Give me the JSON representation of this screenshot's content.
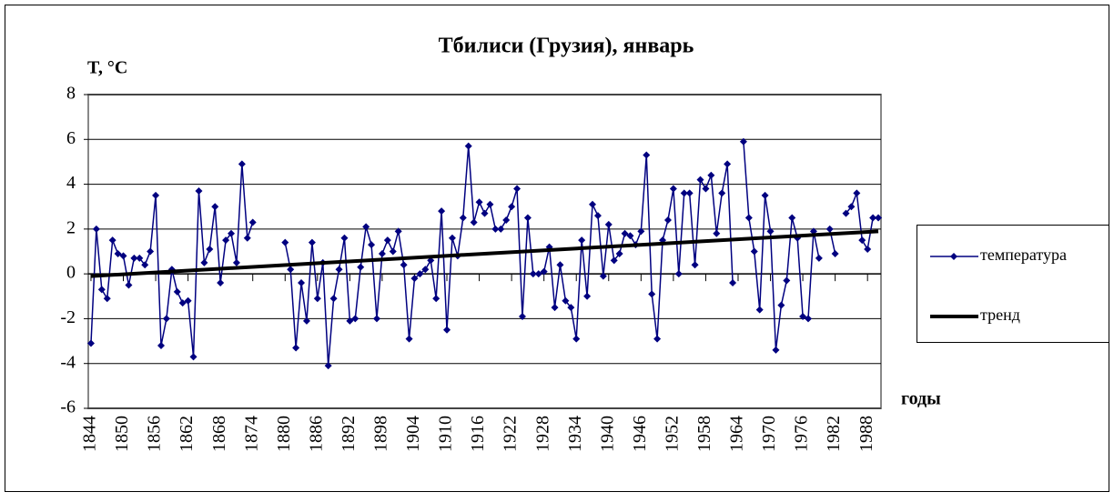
{
  "chart_data": {
    "type": "line",
    "title": "Тбилиси (Грузия), январь",
    "y_label": "T, °C",
    "x_label": "годы",
    "xlim": [
      1843.5,
      1990.5
    ],
    "xticks": [
      1844,
      1850,
      1856,
      1862,
      1868,
      1874,
      1880,
      1886,
      1892,
      1898,
      1904,
      1910,
      1916,
      1922,
      1928,
      1934,
      1940,
      1946,
      1952,
      1958,
      1964,
      1970,
      1976,
      1982,
      1988
    ],
    "ylim": [
      -6,
      8
    ],
    "yticks": [
      -6,
      -4,
      -2,
      0,
      2,
      4,
      6,
      8
    ],
    "grid": true,
    "legend": "right",
    "series": [
      {
        "name": "температура",
        "color": "#000080",
        "x": [
          1844,
          1845,
          1846,
          1847,
          1848,
          1849,
          1850,
          1851,
          1852,
          1853,
          1854,
          1855,
          1856,
          1857,
          1858,
          1859,
          1860,
          1861,
          1862,
          1863,
          1864,
          1865,
          1866,
          1867,
          1868,
          1869,
          1870,
          1871,
          1872,
          1873,
          1874,
          1875,
          1876,
          1877,
          1878,
          1879,
          1880,
          1881,
          1882,
          1883,
          1884,
          1885,
          1886,
          1887,
          1888,
          1889,
          1890,
          1891,
          1892,
          1893,
          1894,
          1895,
          1896,
          1897,
          1898,
          1899,
          1900,
          1901,
          1902,
          1903,
          1904,
          1905,
          1906,
          1907,
          1908,
          1909,
          1910,
          1911,
          1912,
          1913,
          1914,
          1915,
          1916,
          1917,
          1918,
          1919,
          1920,
          1921,
          1922,
          1923,
          1924,
          1925,
          1926,
          1927,
          1928,
          1929,
          1930,
          1931,
          1932,
          1933,
          1934,
          1935,
          1936,
          1937,
          1938,
          1939,
          1940,
          1941,
          1942,
          1943,
          1944,
          1945,
          1946,
          1947,
          1948,
          1949,
          1950,
          1951,
          1952,
          1953,
          1954,
          1955,
          1956,
          1957,
          1958,
          1959,
          1960,
          1961,
          1962,
          1963,
          1964,
          1965,
          1966,
          1967,
          1968,
          1969,
          1970,
          1971,
          1972,
          1973,
          1974,
          1975,
          1976,
          1977,
          1978,
          1979,
          1980,
          1981,
          1982,
          1983,
          1984,
          1985,
          1986,
          1987,
          1988,
          1989,
          1990
        ],
        "values": [
          -3.1,
          2.0,
          -0.7,
          -1.1,
          1.5,
          0.9,
          0.8,
          -0.5,
          0.7,
          0.7,
          0.4,
          1.0,
          3.5,
          -3.2,
          -2.0,
          0.2,
          -0.8,
          -1.3,
          -1.2,
          -3.7,
          3.7,
          0.5,
          1.1,
          3.0,
          -0.4,
          1.5,
          1.8,
          0.5,
          4.9,
          1.6,
          2.3,
          null,
          null,
          null,
          null,
          null,
          1.4,
          0.2,
          -3.3,
          -0.4,
          -2.1,
          1.4,
          -1.1,
          0.5,
          -4.1,
          -1.1,
          0.2,
          1.6,
          -2.1,
          -2.0,
          0.3,
          2.1,
          1.3,
          -2.0,
          0.9,
          1.5,
          1.0,
          1.9,
          0.4,
          -2.9,
          -0.2,
          0.0,
          0.2,
          0.6,
          -1.1,
          2.8,
          -2.5,
          1.6,
          0.8,
          2.5,
          5.7,
          2.3,
          3.2,
          2.7,
          3.1,
          2.0,
          2.0,
          2.4,
          3.0,
          3.8,
          -1.9,
          2.5,
          0.0,
          0.0,
          0.1,
          1.2,
          -1.5,
          0.4,
          -1.2,
          -1.5,
          -2.9,
          1.5,
          -1.0,
          3.1,
          2.6,
          -0.1,
          2.2,
          0.6,
          0.9,
          1.8,
          1.7,
          1.3,
          1.9,
          5.3,
          -0.9,
          -2.9,
          1.5,
          2.4,
          3.8,
          0.0,
          3.6,
          3.6,
          0.4,
          4.2,
          3.8,
          4.4,
          1.8,
          3.6,
          4.9,
          -0.4,
          null,
          5.9,
          2.5,
          1.0,
          -1.6,
          3.5,
          1.9,
          -3.4,
          -1.4,
          -0.3,
          2.5,
          1.6,
          -1.9,
          -2.0,
          1.9,
          0.7,
          null,
          2.0,
          0.9,
          null,
          2.7,
          3.0,
          3.6,
          1.5,
          1.1,
          2.5,
          2.5
        ]
      },
      {
        "name": "тренд",
        "color": "#000000",
        "x": [
          1844,
          1990
        ],
        "values": [
          -0.1,
          1.9
        ]
      }
    ]
  }
}
